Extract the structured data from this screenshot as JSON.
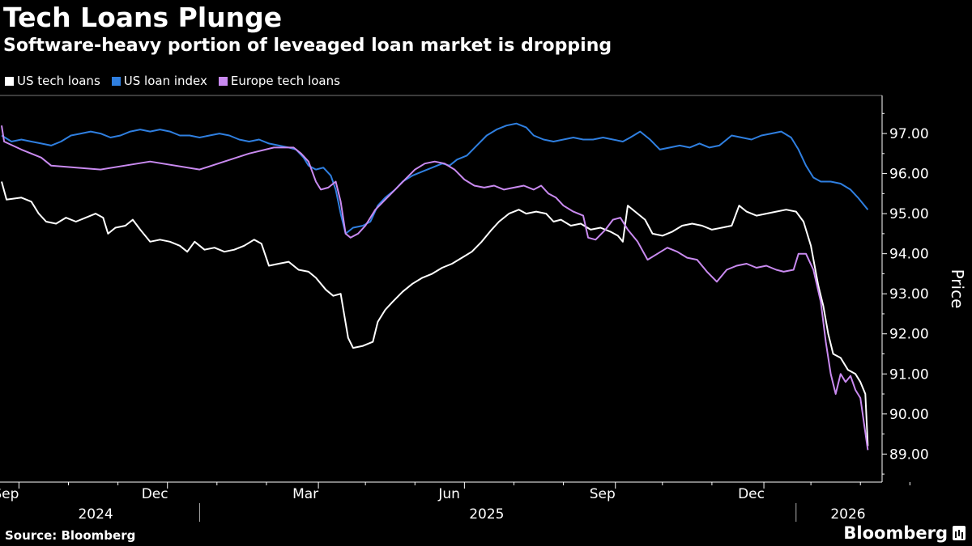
{
  "header": {
    "title": "Tech Loans Plunge",
    "subtitle": "Software-heavy portion of leveaged loan market is dropping"
  },
  "footer": {
    "source": "Source: Bloomberg",
    "brand": "Bloomberg"
  },
  "chart_data": {
    "type": "line",
    "title": "Tech Loans Plunge",
    "subtitle": "Software-heavy portion of leveaged loan market is dropping",
    "xlabel": "",
    "ylabel": "Price",
    "ylim": [
      88.3,
      97.95
    ],
    "yticks": [
      89,
      90,
      91,
      92,
      93,
      94,
      95,
      96,
      97
    ],
    "ytick_labels": [
      "89.00",
      "90.00",
      "91.00",
      "92.00",
      "93.00",
      "94.00",
      "95.00",
      "96.00",
      "97.00"
    ],
    "xlim": [
      0,
      18.95
    ],
    "x_unit": "months since 2024-08-20",
    "month_ticks": [
      {
        "x": 0.35,
        "label": "Sep"
      },
      {
        "x": 3.35,
        "label": "Dec"
      },
      {
        "x": 6.4,
        "label": "Mar"
      },
      {
        "x": 9.35,
        "label": "Jun"
      },
      {
        "x": 12.4,
        "label": "Sep"
      },
      {
        "x": 15.4,
        "label": "Dec"
      }
    ],
    "minor_ticks": [
      1.35,
      2.35,
      4.35,
      5.35,
      7.35,
      8.35,
      10.35,
      11.35,
      13.35,
      14.35,
      16.35,
      17.35,
      18.35
    ],
    "year_labels": [
      {
        "x": 1.9,
        "label": "2024"
      },
      {
        "x": 9.8,
        "label": "2025"
      },
      {
        "x": 17.1,
        "label": "2026"
      }
    ],
    "year_dividers": [
      4.0,
      16.05
    ],
    "legend_position": "top-left",
    "grid": false,
    "series": [
      {
        "name": "US tech loans",
        "color": "#ffffff",
        "points": [
          [
            0,
            95.8
          ],
          [
            0.1,
            95.35
          ],
          [
            0.4,
            95.4
          ],
          [
            0.6,
            95.3
          ],
          [
            0.75,
            95.0
          ],
          [
            0.9,
            94.8
          ],
          [
            1.1,
            94.75
          ],
          [
            1.3,
            94.9
          ],
          [
            1.5,
            94.8
          ],
          [
            1.7,
            94.9
          ],
          [
            1.9,
            95.0
          ],
          [
            2.05,
            94.9
          ],
          [
            2.15,
            94.5
          ],
          [
            2.3,
            94.65
          ],
          [
            2.5,
            94.7
          ],
          [
            2.65,
            94.85
          ],
          [
            2.8,
            94.6
          ],
          [
            3.0,
            94.3
          ],
          [
            3.2,
            94.35
          ],
          [
            3.4,
            94.3
          ],
          [
            3.6,
            94.2
          ],
          [
            3.75,
            94.05
          ],
          [
            3.9,
            94.3
          ],
          [
            4.1,
            94.1
          ],
          [
            4.3,
            94.15
          ],
          [
            4.5,
            94.05
          ],
          [
            4.7,
            94.1
          ],
          [
            4.9,
            94.2
          ],
          [
            5.1,
            94.35
          ],
          [
            5.25,
            94.25
          ],
          [
            5.4,
            93.7
          ],
          [
            5.6,
            93.75
          ],
          [
            5.8,
            93.8
          ],
          [
            6.0,
            93.6
          ],
          [
            6.2,
            93.55
          ],
          [
            6.35,
            93.4
          ],
          [
            6.55,
            93.1
          ],
          [
            6.7,
            92.95
          ],
          [
            6.85,
            93.0
          ],
          [
            7.0,
            91.9
          ],
          [
            7.1,
            91.65
          ],
          [
            7.3,
            91.7
          ],
          [
            7.5,
            91.8
          ],
          [
            7.6,
            92.3
          ],
          [
            7.75,
            92.6
          ],
          [
            7.9,
            92.8
          ],
          [
            8.1,
            93.05
          ],
          [
            8.3,
            93.25
          ],
          [
            8.5,
            93.4
          ],
          [
            8.7,
            93.5
          ],
          [
            8.9,
            93.65
          ],
          [
            9.1,
            93.75
          ],
          [
            9.3,
            93.9
          ],
          [
            9.5,
            94.05
          ],
          [
            9.7,
            94.3
          ],
          [
            9.9,
            94.6
          ],
          [
            10.05,
            94.8
          ],
          [
            10.25,
            95.0
          ],
          [
            10.45,
            95.1
          ],
          [
            10.6,
            95.0
          ],
          [
            10.8,
            95.05
          ],
          [
            11.0,
            95.0
          ],
          [
            11.15,
            94.8
          ],
          [
            11.3,
            94.85
          ],
          [
            11.5,
            94.7
          ],
          [
            11.7,
            94.75
          ],
          [
            11.9,
            94.6
          ],
          [
            12.1,
            94.65
          ],
          [
            12.3,
            94.55
          ],
          [
            12.45,
            94.45
          ],
          [
            12.55,
            94.3
          ],
          [
            12.65,
            95.2
          ],
          [
            12.85,
            95.0
          ],
          [
            13.0,
            94.85
          ],
          [
            13.15,
            94.5
          ],
          [
            13.35,
            94.45
          ],
          [
            13.55,
            94.55
          ],
          [
            13.75,
            94.7
          ],
          [
            13.95,
            94.75
          ],
          [
            14.15,
            94.7
          ],
          [
            14.35,
            94.6
          ],
          [
            14.55,
            94.65
          ],
          [
            14.75,
            94.7
          ],
          [
            14.9,
            95.2
          ],
          [
            15.05,
            95.05
          ],
          [
            15.25,
            94.95
          ],
          [
            15.45,
            95.0
          ],
          [
            15.65,
            95.05
          ],
          [
            15.85,
            95.1
          ],
          [
            16.05,
            95.05
          ],
          [
            16.2,
            94.8
          ],
          [
            16.35,
            94.2
          ],
          [
            16.5,
            93.2
          ],
          [
            16.6,
            92.7
          ],
          [
            16.7,
            92.0
          ],
          [
            16.8,
            91.5
          ],
          [
            16.95,
            91.4
          ],
          [
            17.1,
            91.1
          ],
          [
            17.25,
            91.0
          ],
          [
            17.35,
            90.8
          ],
          [
            17.45,
            90.5
          ],
          [
            17.5,
            89.2
          ]
        ]
      },
      {
        "name": "US loan index",
        "color": "#2f7fe0",
        "points": [
          [
            0,
            96.95
          ],
          [
            0.2,
            96.8
          ],
          [
            0.4,
            96.85
          ],
          [
            0.6,
            96.8
          ],
          [
            0.8,
            96.75
          ],
          [
            1.0,
            96.7
          ],
          [
            1.2,
            96.8
          ],
          [
            1.4,
            96.95
          ],
          [
            1.6,
            97.0
          ],
          [
            1.8,
            97.05
          ],
          [
            2.0,
            97.0
          ],
          [
            2.2,
            96.9
          ],
          [
            2.4,
            96.95
          ],
          [
            2.6,
            97.05
          ],
          [
            2.8,
            97.1
          ],
          [
            3.0,
            97.05
          ],
          [
            3.2,
            97.1
          ],
          [
            3.4,
            97.05
          ],
          [
            3.6,
            96.95
          ],
          [
            3.8,
            96.95
          ],
          [
            4.0,
            96.9
          ],
          [
            4.2,
            96.95
          ],
          [
            4.4,
            97.0
          ],
          [
            4.6,
            96.95
          ],
          [
            4.8,
            96.85
          ],
          [
            5.0,
            96.8
          ],
          [
            5.2,
            96.85
          ],
          [
            5.4,
            96.75
          ],
          [
            5.6,
            96.7
          ],
          [
            5.8,
            96.65
          ],
          [
            5.95,
            96.6
          ],
          [
            6.1,
            96.4
          ],
          [
            6.2,
            96.2
          ],
          [
            6.35,
            96.1
          ],
          [
            6.5,
            96.15
          ],
          [
            6.65,
            95.95
          ],
          [
            6.75,
            95.6
          ],
          [
            6.85,
            95.0
          ],
          [
            6.95,
            94.5
          ],
          [
            7.1,
            94.65
          ],
          [
            7.3,
            94.7
          ],
          [
            7.45,
            94.8
          ],
          [
            7.6,
            95.2
          ],
          [
            7.75,
            95.4
          ],
          [
            7.95,
            95.6
          ],
          [
            8.1,
            95.8
          ],
          [
            8.3,
            95.95
          ],
          [
            8.5,
            96.05
          ],
          [
            8.7,
            96.15
          ],
          [
            8.9,
            96.25
          ],
          [
            9.05,
            96.2
          ],
          [
            9.2,
            96.35
          ],
          [
            9.4,
            96.45
          ],
          [
            9.6,
            96.7
          ],
          [
            9.8,
            96.95
          ],
          [
            10.0,
            97.1
          ],
          [
            10.2,
            97.2
          ],
          [
            10.4,
            97.25
          ],
          [
            10.6,
            97.15
          ],
          [
            10.75,
            96.95
          ],
          [
            10.95,
            96.85
          ],
          [
            11.15,
            96.8
          ],
          [
            11.35,
            96.85
          ],
          [
            11.55,
            96.9
          ],
          [
            11.75,
            96.85
          ],
          [
            11.95,
            96.85
          ],
          [
            12.15,
            96.9
          ],
          [
            12.35,
            96.85
          ],
          [
            12.55,
            96.8
          ],
          [
            12.7,
            96.9
          ],
          [
            12.9,
            97.05
          ],
          [
            13.1,
            96.85
          ],
          [
            13.3,
            96.6
          ],
          [
            13.5,
            96.65
          ],
          [
            13.7,
            96.7
          ],
          [
            13.9,
            96.65
          ],
          [
            14.1,
            96.75
          ],
          [
            14.3,
            96.65
          ],
          [
            14.5,
            96.7
          ],
          [
            14.75,
            96.95
          ],
          [
            14.95,
            96.9
          ],
          [
            15.15,
            96.85
          ],
          [
            15.35,
            96.95
          ],
          [
            15.55,
            97.0
          ],
          [
            15.75,
            97.05
          ],
          [
            15.95,
            96.9
          ],
          [
            16.1,
            96.6
          ],
          [
            16.25,
            96.2
          ],
          [
            16.4,
            95.9
          ],
          [
            16.55,
            95.8
          ],
          [
            16.75,
            95.8
          ],
          [
            16.95,
            95.75
          ],
          [
            17.15,
            95.6
          ],
          [
            17.3,
            95.4
          ],
          [
            17.5,
            95.1
          ]
        ]
      },
      {
        "name": "Europe tech loans",
        "color": "#c98af0",
        "points": [
          [
            0,
            97.2
          ],
          [
            0.05,
            96.8
          ],
          [
            0.4,
            96.6
          ],
          [
            0.8,
            96.4
          ],
          [
            1.0,
            96.2
          ],
          [
            2.0,
            96.1
          ],
          [
            3.0,
            96.3
          ],
          [
            4.0,
            96.1
          ],
          [
            4.5,
            96.3
          ],
          [
            5.0,
            96.5
          ],
          [
            5.5,
            96.65
          ],
          [
            5.9,
            96.65
          ],
          [
            6.05,
            96.5
          ],
          [
            6.2,
            96.3
          ],
          [
            6.35,
            95.8
          ],
          [
            6.45,
            95.6
          ],
          [
            6.6,
            95.65
          ],
          [
            6.75,
            95.8
          ],
          [
            6.85,
            95.3
          ],
          [
            6.95,
            94.5
          ],
          [
            7.05,
            94.4
          ],
          [
            7.2,
            94.5
          ],
          [
            7.35,
            94.7
          ],
          [
            7.55,
            95.1
          ],
          [
            7.75,
            95.35
          ],
          [
            7.95,
            95.6
          ],
          [
            8.15,
            95.85
          ],
          [
            8.35,
            96.1
          ],
          [
            8.55,
            96.25
          ],
          [
            8.75,
            96.3
          ],
          [
            8.95,
            96.25
          ],
          [
            9.15,
            96.1
          ],
          [
            9.35,
            95.85
          ],
          [
            9.55,
            95.7
          ],
          [
            9.75,
            95.65
          ],
          [
            9.95,
            95.7
          ],
          [
            10.15,
            95.6
          ],
          [
            10.35,
            95.65
          ],
          [
            10.55,
            95.7
          ],
          [
            10.75,
            95.6
          ],
          [
            10.9,
            95.7
          ],
          [
            11.05,
            95.5
          ],
          [
            11.2,
            95.4
          ],
          [
            11.35,
            95.2
          ],
          [
            11.55,
            95.05
          ],
          [
            11.75,
            94.95
          ],
          [
            11.85,
            94.4
          ],
          [
            12.0,
            94.35
          ],
          [
            12.2,
            94.6
          ],
          [
            12.35,
            94.85
          ],
          [
            12.5,
            94.9
          ],
          [
            12.65,
            94.6
          ],
          [
            12.85,
            94.3
          ],
          [
            13.05,
            93.85
          ],
          [
            13.25,
            94.0
          ],
          [
            13.45,
            94.15
          ],
          [
            13.65,
            94.05
          ],
          [
            13.85,
            93.9
          ],
          [
            14.05,
            93.85
          ],
          [
            14.25,
            93.55
          ],
          [
            14.45,
            93.3
          ],
          [
            14.65,
            93.6
          ],
          [
            14.85,
            93.7
          ],
          [
            15.05,
            93.75
          ],
          [
            15.25,
            93.65
          ],
          [
            15.45,
            93.7
          ],
          [
            15.65,
            93.6
          ],
          [
            15.8,
            93.55
          ],
          [
            16.0,
            93.6
          ],
          [
            16.1,
            94.0
          ],
          [
            16.25,
            94.0
          ],
          [
            16.4,
            93.6
          ],
          [
            16.55,
            92.8
          ],
          [
            16.65,
            91.8
          ],
          [
            16.75,
            91.0
          ],
          [
            16.85,
            90.5
          ],
          [
            16.95,
            91.0
          ],
          [
            17.05,
            90.8
          ],
          [
            17.15,
            90.95
          ],
          [
            17.25,
            90.6
          ],
          [
            17.35,
            90.4
          ],
          [
            17.5,
            89.1
          ]
        ]
      }
    ]
  }
}
